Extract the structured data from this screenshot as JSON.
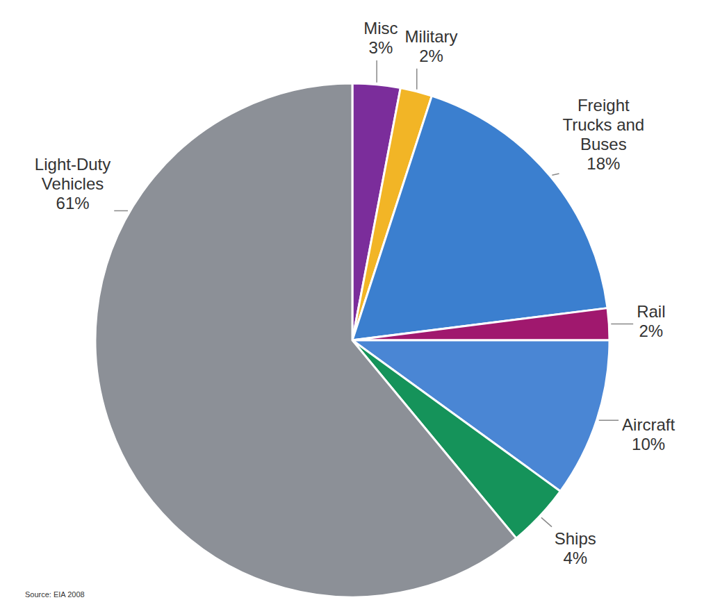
{
  "chart_data": {
    "type": "pie",
    "categories": [
      "Misc",
      "Military",
      "Freight Trucks and Buses",
      "Rail",
      "Aircraft",
      "Ships",
      "Light-Duty Vehicles"
    ],
    "values": [
      3,
      2,
      18,
      2,
      10,
      4,
      61
    ],
    "value_labels": [
      "3%",
      "2%",
      "18%",
      "2%",
      "10%",
      "4%",
      "61%"
    ],
    "colors": [
      "#7b2d9b",
      "#f2b526",
      "#3b7fcf",
      "#a0186e",
      "#4a86d4",
      "#15935a",
      "#8c9097"
    ],
    "data_labels": true,
    "source": "Source: EIA 2008"
  }
}
